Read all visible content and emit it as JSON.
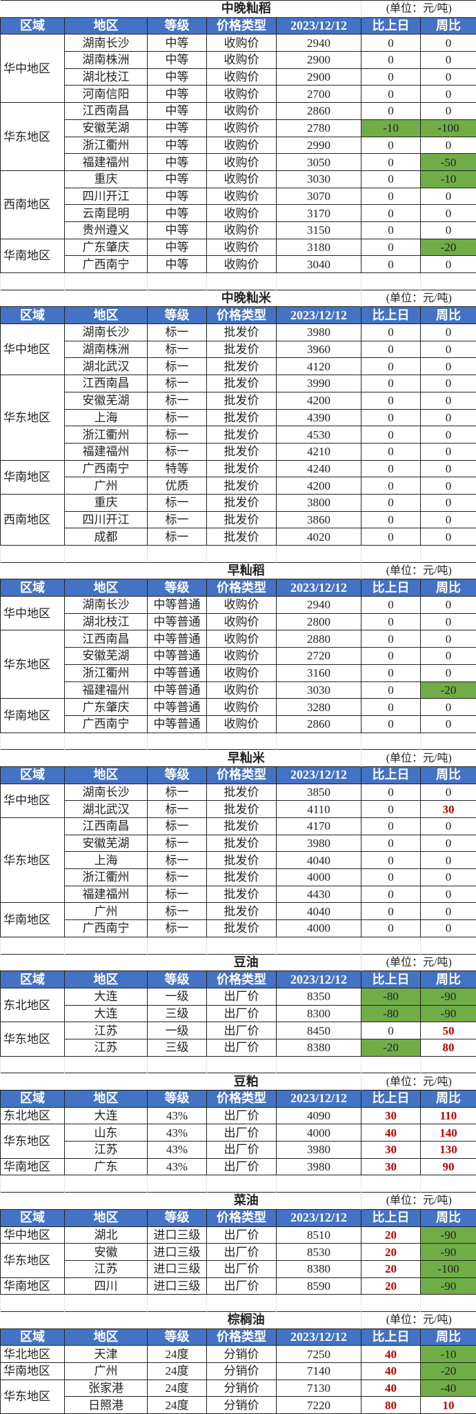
{
  "colors": {
    "header_bg": "#4472C4",
    "decrease_bg": "#70AD47",
    "increase_text": "#C00000"
  },
  "unit_label": "(单位：元/吨)",
  "headers": [
    "区域",
    "地区",
    "等级",
    "价格类型",
    "2023/12/12",
    "比上日",
    "周比"
  ],
  "tables": [
    {
      "title": "中晚籼稻",
      "groups": [
        {
          "region": "华中地区",
          "rows": [
            [
              "湖南长沙",
              "中等",
              "收购价",
              "2940",
              "0",
              "0"
            ],
            [
              "湖南株洲",
              "中等",
              "收购价",
              "2900",
              "0",
              "0"
            ],
            [
              "湖北枝江",
              "中等",
              "收购价",
              "2900",
              "0",
              "0"
            ],
            [
              "河南信阳",
              "中等",
              "收购价",
              "2700",
              "0",
              "0"
            ]
          ]
        },
        {
          "region": "华东地区",
          "rows": [
            [
              "江西南昌",
              "中等",
              "收购价",
              "2860",
              "0",
              "0"
            ],
            [
              "安徽芜湖",
              "中等",
              "收购价",
              "2780",
              "-10",
              "-100"
            ],
            [
              "浙江衢州",
              "中等",
              "收购价",
              "2990",
              "0",
              "0"
            ],
            [
              "福建福州",
              "中等",
              "收购价",
              "3050",
              "0",
              "-50"
            ]
          ]
        },
        {
          "region": "西南地区",
          "rows": [
            [
              "重庆",
              "中等",
              "收购价",
              "3030",
              "0",
              "-10"
            ],
            [
              "四川开江",
              "中等",
              "收购价",
              "3070",
              "0",
              "0"
            ],
            [
              "云南昆明",
              "中等",
              "收购价",
              "3170",
              "0",
              "0"
            ],
            [
              "贵州遵义",
              "中等",
              "收购价",
              "3150",
              "0",
              "0"
            ]
          ]
        },
        {
          "region": "华南地区",
          "rows": [
            [
              "广东肇庆",
              "中等",
              "收购价",
              "3180",
              "0",
              "-20"
            ],
            [
              "广西南宁",
              "中等",
              "收购价",
              "3040",
              "0",
              "0"
            ]
          ]
        }
      ]
    },
    {
      "title": "中晚籼米",
      "groups": [
        {
          "region": "华中地区",
          "rows": [
            [
              "湖南长沙",
              "标一",
              "批发价",
              "3980",
              "0",
              "0"
            ],
            [
              "湖南株洲",
              "标一",
              "批发价",
              "3960",
              "0",
              "0"
            ],
            [
              "湖北武汉",
              "标一",
              "批发价",
              "4120",
              "0",
              "0"
            ]
          ]
        },
        {
          "region": "华东地区",
          "rows": [
            [
              "江西南昌",
              "标一",
              "批发价",
              "3990",
              "0",
              "0"
            ],
            [
              "安徽芜湖",
              "标一",
              "批发价",
              "4200",
              "0",
              "0"
            ],
            [
              "上海",
              "标一",
              "批发价",
              "4390",
              "0",
              "0"
            ],
            [
              "浙江衢州",
              "标一",
              "批发价",
              "4530",
              "0",
              "0"
            ],
            [
              "福建福州",
              "标一",
              "批发价",
              "4210",
              "0",
              "0"
            ]
          ]
        },
        {
          "region": "华南地区",
          "rows": [
            [
              "广西南宁",
              "特等",
              "批发价",
              "4240",
              "0",
              "0"
            ],
            [
              "广州",
              "优质",
              "批发价",
              "4200",
              "0",
              "0"
            ]
          ]
        },
        {
          "region": "西南地区",
          "rows": [
            [
              "重庆",
              "标一",
              "批发价",
              "3800",
              "0",
              "0"
            ],
            [
              "四川开江",
              "标一",
              "批发价",
              "3860",
              "0",
              "0"
            ],
            [
              "成都",
              "标一",
              "批发价",
              "4020",
              "0",
              "0"
            ]
          ]
        }
      ]
    },
    {
      "title": "早籼稻",
      "groups": [
        {
          "region": "华中地区",
          "rows": [
            [
              "湖南长沙",
              "中等普通",
              "收购价",
              "2940",
              "0",
              "0"
            ],
            [
              "湖北枝江",
              "中等普通",
              "收购价",
              "2800",
              "0",
              "0"
            ]
          ]
        },
        {
          "region": "华东地区",
          "rows": [
            [
              "江西南昌",
              "中等普通",
              "收购价",
              "2880",
              "0",
              "0"
            ],
            [
              "安徽芜湖",
              "中等普通",
              "收购价",
              "2720",
              "0",
              "0"
            ],
            [
              "浙江衢州",
              "中等普通",
              "收购价",
              "3160",
              "0",
              "0"
            ],
            [
              "福建福州",
              "中等普通",
              "收购价",
              "3030",
              "0",
              "-20"
            ]
          ]
        },
        {
          "region": "华南地区",
          "rows": [
            [
              "广东肇庆",
              "中等普通",
              "收购价",
              "3280",
              "0",
              "0"
            ],
            [
              "广西南宁",
              "中等普通",
              "收购价",
              "2860",
              "0",
              "0"
            ]
          ]
        }
      ]
    },
    {
      "title": "早籼米",
      "groups": [
        {
          "region": "华中地区",
          "rows": [
            [
              "湖南长沙",
              "标一",
              "批发价",
              "3850",
              "0",
              "0"
            ],
            [
              "湖北武汉",
              "标一",
              "批发价",
              "4110",
              "0",
              "30"
            ]
          ]
        },
        {
          "region": "华东地区",
          "rows": [
            [
              "江西南昌",
              "标一",
              "批发价",
              "4170",
              "0",
              "0"
            ],
            [
              "安徽芜湖",
              "标一",
              "批发价",
              "3980",
              "0",
              "0"
            ],
            [
              "上海",
              "标一",
              "批发价",
              "4040",
              "0",
              "0"
            ],
            [
              "浙江衢州",
              "标一",
              "批发价",
              "4000",
              "0",
              "0"
            ],
            [
              "福建福州",
              "标一",
              "批发价",
              "4430",
              "0",
              "0"
            ]
          ]
        },
        {
          "region": "华南地区",
          "rows": [
            [
              "广州",
              "标一",
              "批发价",
              "4040",
              "0",
              "0"
            ],
            [
              "广西南宁",
              "标一",
              "批发价",
              "4000",
              "0",
              "0"
            ]
          ]
        }
      ]
    },
    {
      "title": "豆油",
      "groups": [
        {
          "region": "东北地区",
          "rows": [
            [
              "大连",
              "一级",
              "出厂价",
              "8350",
              "-80",
              "-90"
            ],
            [
              "大连",
              "三级",
              "出厂价",
              "8300",
              "-80",
              "-90"
            ]
          ]
        },
        {
          "region": "华东地区",
          "rows": [
            [
              "江苏",
              "一级",
              "出厂价",
              "8450",
              "0",
              "50"
            ],
            [
              "江苏",
              "三级",
              "出厂价",
              "8380",
              "-20",
              "80"
            ]
          ]
        }
      ]
    },
    {
      "title": "豆粕",
      "groups": [
        {
          "region": "东北地区",
          "rows": [
            [
              "大连",
              "43%",
              "出厂价",
              "4090",
              "30",
              "110"
            ]
          ]
        },
        {
          "region": "华东地区",
          "rows": [
            [
              "山东",
              "43%",
              "出厂价",
              "4000",
              "40",
              "140"
            ],
            [
              "江苏",
              "43%",
              "出厂价",
              "3980",
              "30",
              "130"
            ]
          ]
        },
        {
          "region": "华南地区",
          "rows": [
            [
              "广东",
              "43%",
              "出厂价",
              "3980",
              "30",
              "90"
            ]
          ]
        }
      ]
    },
    {
      "title": "菜油",
      "groups": [
        {
          "region": "华中地区",
          "rows": [
            [
              "湖北",
              "进口三级",
              "出厂价",
              "8510",
              "20",
              "-90"
            ]
          ]
        },
        {
          "region": "华东地区",
          "rows": [
            [
              "安徽",
              "进口三级",
              "出厂价",
              "8530",
              "20",
              "-90"
            ],
            [
              "江苏",
              "进口三级",
              "出厂价",
              "8380",
              "20",
              "-100"
            ]
          ]
        },
        {
          "region": "华南地区",
          "rows": [
            [
              "四川",
              "进口三级",
              "出厂价",
              "8590",
              "20",
              "-90"
            ]
          ]
        }
      ]
    },
    {
      "title": "棕榈油",
      "groups": [
        {
          "region": "华北地区",
          "rows": [
            [
              "天津",
              "24度",
              "分销价",
              "7250",
              "40",
              "-10"
            ]
          ]
        },
        {
          "region": "华南地区",
          "rows": [
            [
              "广州",
              "24度",
              "分销价",
              "7140",
              "40",
              "-20"
            ]
          ]
        },
        {
          "region": "华东地区",
          "rows": [
            [
              "张家港",
              "24度",
              "分销价",
              "7130",
              "40",
              "-40"
            ],
            [
              "日照港",
              "24度",
              "分销价",
              "7220",
              "80",
              "10"
            ]
          ]
        }
      ]
    }
  ]
}
